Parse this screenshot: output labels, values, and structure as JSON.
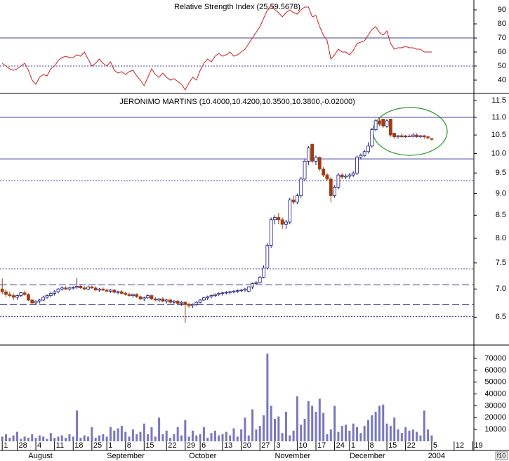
{
  "chart_data": [
    {
      "type": "line",
      "title": "Relative Strength Index (25,59.5678)",
      "color": "#cc2020",
      "ylim": [
        31,
        97
      ],
      "yticks": [
        40,
        50,
        60,
        70,
        80,
        90
      ],
      "levels": [
        {
          "value": 70,
          "style": "solid"
        },
        {
          "value": 50,
          "style": "dotted"
        }
      ],
      "values": [
        52,
        50,
        48,
        47,
        48,
        50,
        52,
        47,
        40,
        37,
        42,
        44,
        43,
        48,
        50,
        54,
        56,
        57,
        56,
        56,
        58,
        57,
        60,
        55,
        50,
        52,
        55,
        52,
        50,
        53,
        47,
        45,
        46,
        44,
        46,
        47,
        43,
        40,
        36,
        42,
        48,
        44,
        42,
        45,
        42,
        40,
        41,
        39,
        37,
        33,
        38,
        42,
        40,
        47,
        52,
        55,
        53,
        57,
        59,
        57,
        58,
        60,
        57,
        58,
        60,
        62,
        66,
        70,
        74,
        78,
        84,
        90,
        93,
        90,
        88,
        85,
        88,
        90,
        88,
        87,
        90,
        92,
        92,
        85,
        86,
        78,
        72,
        68,
        55,
        58,
        62,
        60,
        60,
        58,
        61,
        66,
        67,
        68,
        72,
        76,
        78,
        74,
        72,
        75,
        66,
        62,
        63,
        63,
        64,
        63,
        63,
        62,
        62,
        60,
        60,
        60
      ]
    },
    {
      "type": "candlestick",
      "title": "JERONIMO MARTINS (10.4000,10.4200,10.3500,10.3800,-0.02000)",
      "log_scale": true,
      "up_color": "#1a1a80",
      "down_color": "#a03c14",
      "level_color": "#4040a0",
      "ylim": [
        6.04,
        11.67
      ],
      "yticks": [
        6.5,
        {
          "value": 7,
          "label": "7.0"
        },
        7.5,
        {
          "value": 8,
          "label": "8.0"
        },
        8.5,
        {
          "value": 9,
          "label": "9.0"
        },
        9.5,
        {
          "value": 10,
          "label": "10.0"
        },
        10.5,
        {
          "value": 11,
          "label": "11.0"
        },
        11.5
      ],
      "levels": [
        {
          "value": 11.0,
          "style": "solid"
        },
        {
          "value": 9.86,
          "style": "solid"
        },
        {
          "value": 9.31,
          "style": "dotted"
        },
        {
          "value": 7.38,
          "style": "dotted"
        },
        {
          "value": 7.08,
          "style": "dashed"
        },
        {
          "value": 6.72,
          "style": "dashed"
        },
        {
          "value": 6.51,
          "style": "dotted"
        }
      ],
      "ohlc": [
        [
          7.0,
          7.2,
          6.9,
          6.95
        ],
        [
          6.95,
          7.0,
          6.85,
          6.9
        ],
        [
          6.9,
          6.95,
          6.85,
          6.88
        ],
        [
          6.88,
          6.92,
          6.8,
          6.85
        ],
        [
          6.85,
          6.9,
          6.8,
          6.88
        ],
        [
          6.88,
          6.95,
          6.85,
          6.93
        ],
        [
          6.93,
          6.97,
          6.88,
          6.9
        ],
        [
          6.9,
          6.92,
          6.78,
          6.8
        ],
        [
          6.8,
          6.82,
          6.72,
          6.75
        ],
        [
          6.75,
          6.8,
          6.72,
          6.78
        ],
        [
          6.78,
          6.82,
          6.74,
          6.8
        ],
        [
          6.8,
          6.88,
          6.78,
          6.85
        ],
        [
          6.85,
          6.9,
          6.82,
          6.88
        ],
        [
          6.88,
          6.95,
          6.85,
          6.92
        ],
        [
          6.92,
          6.98,
          6.88,
          6.95
        ],
        [
          6.95,
          7.02,
          6.92,
          7.0
        ],
        [
          7.0,
          7.05,
          6.97,
          7.02
        ],
        [
          7.02,
          7.05,
          6.98,
          7.0
        ],
        [
          7.0,
          7.04,
          6.97,
          7.02
        ],
        [
          7.02,
          7.05,
          6.99,
          7.03
        ],
        [
          7.03,
          7.2,
          7.0,
          7.05
        ],
        [
          7.05,
          7.08,
          7.0,
          7.02
        ],
        [
          7.02,
          7.05,
          6.98,
          7.0
        ],
        [
          7.0,
          7.06,
          6.98,
          7.04
        ],
        [
          7.04,
          7.06,
          7.0,
          7.02
        ],
        [
          7.02,
          7.05,
          6.97,
          6.98
        ],
        [
          6.98,
          7.02,
          6.95,
          7.0
        ],
        [
          7.0,
          7.03,
          6.96,
          6.98
        ],
        [
          6.98,
          7.0,
          6.94,
          6.96
        ],
        [
          6.96,
          7.0,
          6.93,
          6.98
        ],
        [
          6.98,
          7.0,
          6.92,
          6.94
        ],
        [
          6.94,
          6.97,
          6.9,
          6.95
        ],
        [
          6.95,
          6.98,
          6.9,
          6.92
        ],
        [
          6.92,
          6.95,
          6.88,
          6.9
        ],
        [
          6.9,
          6.93,
          6.86,
          6.88
        ],
        [
          6.88,
          6.92,
          6.84,
          6.9
        ],
        [
          6.9,
          6.92,
          6.84,
          6.86
        ],
        [
          6.86,
          6.88,
          6.8,
          6.82
        ],
        [
          6.82,
          6.86,
          6.78,
          6.84
        ],
        [
          6.84,
          6.9,
          6.82,
          6.88
        ],
        [
          6.88,
          6.9,
          6.8,
          6.82
        ],
        [
          6.82,
          6.85,
          6.78,
          6.8
        ],
        [
          6.8,
          6.84,
          6.76,
          6.82
        ],
        [
          6.82,
          6.85,
          6.76,
          6.78
        ],
        [
          6.78,
          6.82,
          6.74,
          6.8
        ],
        [
          6.8,
          6.82,
          6.74,
          6.76
        ],
        [
          6.76,
          6.8,
          6.72,
          6.78
        ],
        [
          6.78,
          6.8,
          6.72,
          6.74
        ],
        [
          6.74,
          6.78,
          6.7,
          6.76
        ],
        [
          6.76,
          6.78,
          6.4,
          6.72
        ],
        [
          6.72,
          6.75,
          6.66,
          6.7
        ],
        [
          6.7,
          6.74,
          6.66,
          6.72
        ],
        [
          6.72,
          6.78,
          6.7,
          6.76
        ],
        [
          6.76,
          6.82,
          6.74,
          6.8
        ],
        [
          6.8,
          6.86,
          6.78,
          6.84
        ],
        [
          6.84,
          6.88,
          6.8,
          6.86
        ],
        [
          6.86,
          6.9,
          6.83,
          6.88
        ],
        [
          6.88,
          6.92,
          6.85,
          6.9
        ],
        [
          6.9,
          6.94,
          6.87,
          6.92
        ],
        [
          6.92,
          6.95,
          6.88,
          6.93
        ],
        [
          6.93,
          6.96,
          6.9,
          6.94
        ],
        [
          6.94,
          6.97,
          6.9,
          6.95
        ],
        [
          6.95,
          6.98,
          6.92,
          6.96
        ],
        [
          6.96,
          6.99,
          6.93,
          6.97
        ],
        [
          6.97,
          7.0,
          6.94,
          6.98
        ],
        [
          6.98,
          7.02,
          6.95,
          7.0
        ],
        [
          6.96,
          7.05,
          6.94,
          7.04
        ],
        [
          7.04,
          7.12,
          7.0,
          7.1
        ],
        [
          7.1,
          7.15,
          7.08,
          7.12
        ],
        [
          7.12,
          7.25,
          7.1,
          7.22
        ],
        [
          7.22,
          7.45,
          7.2,
          7.4
        ],
        [
          7.4,
          7.9,
          7.38,
          7.85
        ],
        [
          7.85,
          8.45,
          7.8,
          8.4
        ],
        [
          8.4,
          8.5,
          8.3,
          8.45
        ],
        [
          8.45,
          8.55,
          8.3,
          8.4
        ],
        [
          8.4,
          8.45,
          8.2,
          8.3
        ],
        [
          8.3,
          8.4,
          8.2,
          8.35
        ],
        [
          8.35,
          8.9,
          8.3,
          8.85
        ],
        [
          8.85,
          8.95,
          8.75,
          8.8
        ],
        [
          8.8,
          9.0,
          8.75,
          8.95
        ],
        [
          8.95,
          9.4,
          8.9,
          9.35
        ],
        [
          9.35,
          9.85,
          9.3,
          9.8
        ],
        [
          9.8,
          10.2,
          9.7,
          10.15
        ],
        [
          10.25,
          10.25,
          9.75,
          9.8
        ],
        [
          9.8,
          9.95,
          9.7,
          9.9
        ],
        [
          9.9,
          9.92,
          9.55,
          9.6
        ],
        [
          9.6,
          9.65,
          9.4,
          9.45
        ],
        [
          9.45,
          9.5,
          9.3,
          9.35
        ],
        [
          9.35,
          9.4,
          8.8,
          8.95
        ],
        [
          8.95,
          9.2,
          8.9,
          9.15
        ],
        [
          9.15,
          9.5,
          9.1,
          9.45
        ],
        [
          9.45,
          9.5,
          9.35,
          9.4
        ],
        [
          9.4,
          9.48,
          9.35,
          9.42
        ],
        [
          9.42,
          9.5,
          9.35,
          9.45
        ],
        [
          9.45,
          9.55,
          9.4,
          9.5
        ],
        [
          9.5,
          9.95,
          9.45,
          9.9
        ],
        [
          9.9,
          10.0,
          9.85,
          9.95
        ],
        [
          9.95,
          10.1,
          9.9,
          10.05
        ],
        [
          10.05,
          10.3,
          10.0,
          10.2
        ],
        [
          10.2,
          10.7,
          10.15,
          10.65
        ],
        [
          10.65,
          10.95,
          10.6,
          10.9
        ],
        [
          10.9,
          11.0,
          10.75,
          10.8
        ],
        [
          10.95,
          10.95,
          10.7,
          10.75
        ],
        [
          10.75,
          10.95,
          10.7,
          10.9
        ],
        [
          10.95,
          10.95,
          10.45,
          10.5
        ],
        [
          10.55,
          10.55,
          10.4,
          10.45
        ],
        [
          10.45,
          10.5,
          10.4,
          10.48
        ],
        [
          10.48,
          10.55,
          10.42,
          10.45
        ],
        [
          10.45,
          10.5,
          10.42,
          10.47
        ],
        [
          10.47,
          10.52,
          10.44,
          10.46
        ],
        [
          10.46,
          10.55,
          10.43,
          10.5
        ],
        [
          10.5,
          10.55,
          10.42,
          10.45
        ],
        [
          10.45,
          10.5,
          10.42,
          10.48
        ],
        [
          10.48,
          10.5,
          10.4,
          10.45
        ],
        [
          10.45,
          10.48,
          10.38,
          10.42
        ],
        [
          10.4,
          10.42,
          10.35,
          10.38
        ]
      ]
    },
    {
      "type": "bar",
      "color": "#7878c0",
      "ylim": [
        0,
        80700
      ],
      "yticks": [
        10000,
        20000,
        30000,
        40000,
        50000,
        60000,
        70000
      ],
      "values": [
        4000,
        6000,
        3000,
        5000,
        8000,
        2000,
        4000,
        3000,
        6000,
        3000,
        5000,
        4000,
        2000,
        7000,
        3000,
        4000,
        5000,
        3000,
        6000,
        4000,
        26000,
        3000,
        5000,
        4000,
        12000,
        3000,
        5000,
        6000,
        4000,
        12000,
        9000,
        11000,
        13000,
        8000,
        4000,
        10000,
        6000,
        8000,
        15000,
        6000,
        12000,
        4000,
        20000,
        6000,
        9000,
        3000,
        6000,
        12000,
        5000,
        18000,
        4000,
        9000,
        5000,
        6000,
        12000,
        3000,
        7000,
        9000,
        5000,
        6000,
        8000,
        5000,
        11000,
        4000,
        10000,
        20000,
        5000,
        27000,
        10000,
        13000,
        22000,
        74000,
        30000,
        19000,
        21000,
        7000,
        25000,
        5000,
        9000,
        38000,
        14000,
        19000,
        34000,
        30000,
        25000,
        36000,
        24000,
        6000,
        10000,
        30000,
        8000,
        13000,
        14000,
        9000,
        15000,
        12000,
        7000,
        13000,
        18000,
        22000,
        25000,
        30000,
        31000,
        15000,
        13000,
        20000,
        10000,
        7000,
        12000,
        9000,
        10000,
        8000,
        5000,
        26000,
        10000,
        5000
      ],
      "xlim": [
        -0.6,
        126.3
      ],
      "xticks": [
        {
          "value": 0,
          "label": "1"
        },
        {
          "value": 4,
          "label": "28"
        },
        {
          "value": 9,
          "label": "4"
        },
        {
          "value": 14,
          "label": "11"
        },
        {
          "value": 19,
          "label": "18"
        },
        {
          "value": 24,
          "label": "25"
        },
        {
          "value": 28,
          "label": "1"
        },
        {
          "value": 33,
          "label": "8"
        },
        {
          "value": 38,
          "label": "15"
        },
        {
          "value": 44,
          "label": "22"
        },
        {
          "value": 49,
          "label": "29"
        },
        {
          "value": 53,
          "label": "6"
        },
        {
          "value": 59,
          "label": "13"
        },
        {
          "value": 64,
          "label": "20"
        },
        {
          "value": 69,
          "label": "27"
        },
        {
          "value": 73,
          "label": "3"
        },
        {
          "value": 79,
          "label": "10"
        },
        {
          "value": 84,
          "label": "17"
        },
        {
          "value": 89,
          "label": "24"
        },
        {
          "value": 93,
          "label": "1"
        },
        {
          "value": 98,
          "label": "8"
        },
        {
          "value": 103,
          "label": "15"
        },
        {
          "value": 108,
          "label": "22"
        },
        {
          "value": 115,
          "label": "5"
        },
        {
          "value": 121,
          "label": "12"
        },
        {
          "value": 126,
          "label": "19"
        }
      ],
      "months": [
        {
          "value": 7,
          "label": "August"
        },
        {
          "value": 28,
          "label": "September"
        },
        {
          "value": 50,
          "label": "October"
        },
        {
          "value": 73,
          "label": "November"
        },
        {
          "value": 93,
          "label": "December"
        },
        {
          "value": 114,
          "label": "2004"
        }
      ],
      "corner_label": "f10"
    }
  ]
}
